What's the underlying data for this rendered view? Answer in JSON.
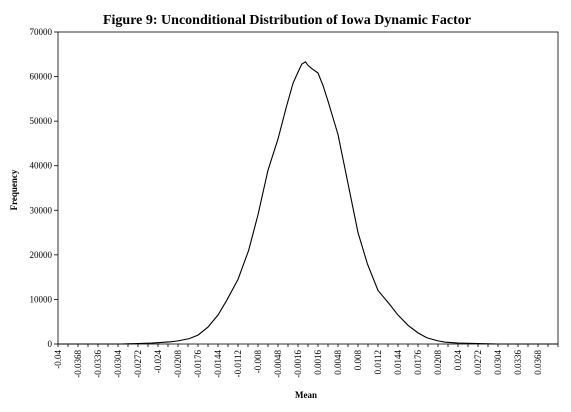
{
  "chart_data": {
    "type": "line",
    "title": "Figure 9: Unconditional Distribution of Iowa Dynamic Factor",
    "xlabel": "Mean",
    "ylabel": "Frequency",
    "ylim": [
      0,
      70000
    ],
    "xlim": [
      -0.04,
      0.04
    ],
    "yticks": [
      "0",
      "10000",
      "20000",
      "30000",
      "40000",
      "50000",
      "60000",
      "70000"
    ],
    "xticks": [
      "-0.04",
      "-0.0368",
      "-0.0336",
      "-0.0304",
      "-0.0272",
      "-0.024",
      "-0.0208",
      "-0.0176",
      "-0.0144",
      "-0.0112",
      "-0.008",
      "-0.0048",
      "-0.0016",
      "0.0016",
      "0.0048",
      "0.008",
      "0.0112",
      "0.0144",
      "0.0176",
      "0.0208",
      "0.024",
      "0.0272",
      "0.0304",
      "0.0336",
      "0.0368"
    ],
    "grid": false,
    "legend": "none",
    "series": [
      {
        "x": [
          -0.04,
          -0.03,
          -0.0272,
          -0.025,
          -0.024,
          -0.022,
          -0.0208,
          -0.019,
          -0.0176,
          -0.016,
          -0.0144,
          -0.013,
          -0.0112,
          -0.0095,
          -0.008,
          -0.0064,
          -0.0048,
          -0.0035,
          -0.0024,
          -0.0016,
          -0.001,
          -0.0004,
          0.0,
          0.0006,
          0.0016,
          0.0024,
          0.0032,
          0.0048,
          0.0064,
          0.008,
          0.0095,
          0.0112,
          0.013,
          0.0144,
          0.016,
          0.0176,
          0.019,
          0.0208,
          0.022,
          0.024,
          0.0272,
          0.0304,
          0.04
        ],
        "values": [
          0,
          0,
          100,
          200,
          300,
          500,
          700,
          1200,
          2000,
          3800,
          6500,
          9800,
          14500,
          21000,
          29000,
          39000,
          46000,
          53000,
          58500,
          61000,
          62800,
          63300,
          62500,
          61800,
          60800,
          58000,
          54500,
          47000,
          36000,
          25000,
          18000,
          12000,
          9000,
          6500,
          4200,
          2500,
          1400,
          700,
          400,
          200,
          100,
          0,
          0
        ]
      }
    ]
  }
}
